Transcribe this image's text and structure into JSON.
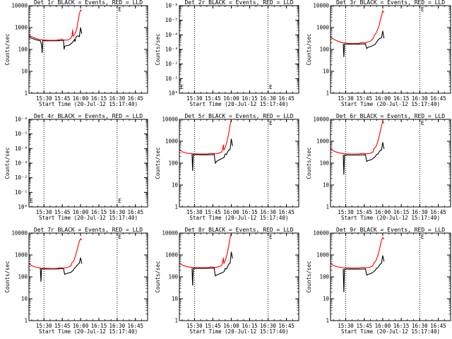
{
  "colors": {
    "events": "#000000",
    "lld": "#ff0000",
    "background": "#ffffff",
    "axes": "#000000"
  },
  "chart_data": [
    {
      "type": "line",
      "title": "Det 1r BLACK = Events, RED = LLD",
      "xlabel": "Start Time (20-Jul-12 15:17:40)",
      "ylabel": "Counts/sec",
      "yscale": "log",
      "xlim": [
        "15:17:40",
        "16:55"
      ],
      "ylim": [
        1,
        10000
      ],
      "xtick_labels": [
        "15:30",
        "15:45",
        "16:00",
        "16:15",
        "16:30",
        "16:45"
      ],
      "ytick_labels": [
        "1",
        "10",
        "100",
        "1000",
        "10000"
      ],
      "vlines": [
        "15:30",
        "16:30"
      ],
      "marker_label": "E",
      "series": [
        {
          "name": "Events",
          "color": "#000000",
          "x": [
            "15:17:40",
            "15:20",
            "15:24",
            "15:27",
            "15:28",
            "15:28.5",
            "15:29",
            "15:30",
            "15:31",
            "15:32",
            "15:34",
            "15:36",
            "15:40",
            "15:42",
            "15:44",
            "15:45",
            "15:46",
            "15:46.5",
            "15:47",
            "15:48",
            "15:48.5",
            "15:49",
            "15:49.5",
            "15:50",
            "15:51",
            "15:52",
            "15:53",
            "15:54",
            "15:55",
            "15:55.5",
            "15:56",
            "15:57",
            "15:58",
            "15:59",
            "16:00",
            "16:01"
          ],
          "y": [
            380,
            320,
            270,
            250,
            170,
            70,
            260,
            255,
            250,
            250,
            250,
            250,
            250,
            250,
            255,
            260,
            255,
            100,
            140,
            145,
            148,
            150,
            152,
            155,
            160,
            180,
            200,
            230,
            280,
            230,
            350,
            400,
            420,
            380,
            1000,
            520
          ]
        },
        {
          "name": "LLD",
          "color": "#ff0000",
          "x": [
            "15:17:40",
            "15:20",
            "15:24",
            "15:27",
            "15:30",
            "15:33",
            "15:36",
            "15:38",
            "15:40",
            "15:42",
            "15:44",
            "15:46",
            "15:48",
            "15:50",
            "15:51",
            "15:52",
            "15:53",
            "15:53.5",
            "15:54",
            "15:55",
            "15:56",
            "15:57",
            "15:58",
            "15:58.5",
            "15:59",
            "16:00",
            "16:01"
          ],
          "y": [
            480,
            380,
            310,
            280,
            270,
            265,
            262,
            262,
            265,
            270,
            300,
            270,
            265,
            275,
            290,
            330,
            420,
            800,
            400,
            460,
            620,
            950,
            2000,
            2800,
            4200,
            6300,
            5800
          ]
        }
      ]
    },
    {
      "type": "line",
      "title": "Det 2r BLACK = Events, RED = LLD",
      "xlabel": "Start Time (20-Jul-12 15:17:40)",
      "ylabel": "Counts/sec",
      "yscale": "log",
      "xlim": [
        "15:17:40",
        "16:55"
      ],
      "ylim": [
        1,
        1e-06
      ],
      "xtick_labels": [
        "15:30",
        "15:45",
        "16:00",
        "16:15",
        "16:30",
        "16:45"
      ],
      "ytick_labels": [
        "10⁰",
        "10⁻¹",
        "10⁻²",
        "10⁻³",
        "10⁻⁴",
        "10⁻⁵",
        "10⁻⁶"
      ],
      "vlines": [
        "15:30",
        "16:30"
      ],
      "marker_label": "E",
      "left_marker_label": "E",
      "series": []
    },
    {
      "type": "line",
      "title": "Det 3r BLACK = Events, RED = LLD",
      "xlabel": "Start Time (20-Jul-12 15:17:40)",
      "ylabel": "Counts/sec",
      "yscale": "log",
      "xlim": [
        "15:17:40",
        "16:55"
      ],
      "ylim": [
        1,
        10000
      ],
      "xtick_labels": [
        "15:30",
        "15:45",
        "16:00",
        "16:15",
        "16:30",
        "16:45"
      ],
      "ytick_labels": [
        "1",
        "10",
        "100",
        "1000",
        "10000"
      ],
      "vlines": [
        "15:30",
        "16:30"
      ],
      "marker_label": "E",
      "series": [
        {
          "name": "Events",
          "color": "#000000",
          "x": [
            "15:28",
            "15:28.5",
            "15:29",
            "15:32",
            "15:36",
            "15:40",
            "15:44",
            "15:46",
            "15:47",
            "15:48",
            "15:50",
            "15:52",
            "15:54",
            "15:55",
            "15:56",
            "15:57",
            "15:58",
            "15:59",
            "16:00",
            "16:01"
          ],
          "y": [
            180,
            45,
            175,
            175,
            175,
            175,
            178,
            180,
            110,
            125,
            135,
            150,
            175,
            220,
            260,
            300,
            330,
            340,
            700,
            320
          ]
        },
        {
          "name": "LLD",
          "color": "#ff0000",
          "x": [
            "15:17:40",
            "15:20",
            "15:24",
            "15:28",
            "15:32",
            "15:36",
            "15:40",
            "15:44",
            "15:46",
            "15:48",
            "15:50",
            "15:52",
            "15:53",
            "15:54",
            "15:55",
            "15:56",
            "15:57",
            "15:58",
            "15:59",
            "16:00",
            "16:01"
          ],
          "y": [
            380,
            300,
            230,
            200,
            190,
            185,
            190,
            210,
            200,
            220,
            240,
            300,
            420,
            500,
            620,
            850,
            1200,
            2000,
            3500,
            5800,
            4800
          ]
        }
      ]
    },
    {
      "type": "line",
      "title": "Det 4r BLACK = Events, RED = LLD",
      "xlabel": "Start Time (20-Jul-12 15:17:40)",
      "ylabel": "Counts/sec",
      "yscale": "log",
      "xlim": [
        "15:17:40",
        "16:55"
      ],
      "ylim": [
        1,
        1e-06
      ],
      "xtick_labels": [
        "15:30",
        "15:45",
        "16:00",
        "16:15",
        "16:30",
        "16:45"
      ],
      "ytick_labels": [
        "10⁰",
        "10⁻¹",
        "10⁻²",
        "10⁻³",
        "10⁻⁴",
        "10⁻⁵",
        "10⁻⁶"
      ],
      "vlines": [
        "15:30",
        "16:30"
      ],
      "marker_label": "E",
      "left_marker_label": "E",
      "series": []
    },
    {
      "type": "line",
      "title": "Det 5r BLACK = Events, RED = LLD",
      "xlabel": "Start Time (20-Jul-12 15:17:40)",
      "ylabel": "Counts/sec",
      "yscale": "log",
      "xlim": [
        "15:17:40",
        "16:55"
      ],
      "ylim": [
        1,
        10000
      ],
      "xtick_labels": [
        "15:30",
        "15:45",
        "16:00",
        "16:15",
        "16:30",
        "16:45"
      ],
      "ytick_labels": [
        "1",
        "10",
        "100",
        "1000",
        "10000"
      ],
      "vlines": [
        "15:30",
        "16:30"
      ],
      "marker_label": "E",
      "series": [
        {
          "name": "Events",
          "color": "#000000",
          "x": [
            "15:28",
            "15:28.5",
            "15:29",
            "15:32",
            "15:36",
            "15:40",
            "15:44",
            "15:46",
            "15:47",
            "15:48",
            "15:50",
            "15:52",
            "15:54",
            "15:55",
            "15:56",
            "15:57",
            "15:58",
            "15:59",
            "16:00",
            "16:01"
          ],
          "y": [
            260,
            45,
            250,
            245,
            240,
            240,
            245,
            250,
            100,
            120,
            140,
            160,
            180,
            260,
            250,
            320,
            400,
            420,
            1300,
            600
          ]
        },
        {
          "name": "LLD",
          "color": "#ff0000",
          "x": [
            "15:17:40",
            "15:20",
            "15:24",
            "15:28",
            "15:32",
            "15:36",
            "15:40",
            "15:44",
            "15:46",
            "15:48",
            "15:50",
            "15:52",
            "15:53",
            "15:53.5",
            "15:54",
            "15:55",
            "15:56",
            "15:57",
            "15:58",
            "15:59",
            "16:00"
          ],
          "y": [
            420,
            330,
            280,
            270,
            265,
            262,
            262,
            280,
            265,
            270,
            290,
            320,
            420,
            700,
            400,
            500,
            800,
            1300,
            2500,
            5500,
            9500
          ]
        }
      ]
    },
    {
      "type": "line",
      "title": "Det 6r BLACK = Events, RED = LLD",
      "xlabel": "Start Time (20-Jul-12 15:17:40)",
      "ylabel": "Counts/sec",
      "yscale": "log",
      "xlim": [
        "15:17:40",
        "16:55"
      ],
      "ylim": [
        1,
        10000
      ],
      "xtick_labels": [
        "15:30",
        "15:45",
        "16:00",
        "16:15",
        "16:30",
        "16:45"
      ],
      "ytick_labels": [
        "1",
        "10",
        "100",
        "1000",
        "10000"
      ],
      "vlines": [
        "15:30",
        "16:30"
      ],
      "marker_label": "E",
      "series": [
        {
          "name": "Events",
          "color": "#000000",
          "x": [
            "15:28",
            "15:28.5",
            "15:29",
            "15:32",
            "15:36",
            "15:40",
            "15:44",
            "15:46",
            "15:47",
            "15:48",
            "15:50",
            "15:52",
            "15:54",
            "15:55",
            "15:56",
            "15:57",
            "15:58",
            "15:59",
            "16:00",
            "16:01"
          ],
          "y": [
            240,
            30,
            235,
            235,
            235,
            235,
            238,
            240,
            120,
            130,
            140,
            160,
            200,
            250,
            260,
            320,
            380,
            400,
            900,
            450
          ]
        },
        {
          "name": "LLD",
          "color": "#ff0000",
          "x": [
            "15:17:40",
            "15:20",
            "15:24",
            "15:28",
            "15:32",
            "15:36",
            "15:40",
            "15:44",
            "15:46",
            "15:48",
            "15:50",
            "15:52",
            "15:53",
            "15:54",
            "15:55",
            "15:56",
            "15:57",
            "15:58",
            "15:59",
            "16:00",
            "16:01"
          ],
          "y": [
            480,
            360,
            300,
            270,
            265,
            262,
            262,
            280,
            265,
            270,
            285,
            320,
            480,
            520,
            650,
            1000,
            1600,
            2800,
            5200,
            8000,
            6500
          ]
        }
      ]
    },
    {
      "type": "line",
      "title": "Det 7r BLACK = Events, RED = LLD",
      "xlabel": "Start Time (20-Jul-12 15:17:40)",
      "ylabel": "Counts/sec",
      "yscale": "log",
      "xlim": [
        "15:17:40",
        "16:55"
      ],
      "ylim": [
        1,
        10000
      ],
      "xtick_labels": [
        "15:30",
        "15:45",
        "16:00",
        "16:15",
        "16:30",
        "16:45"
      ],
      "ytick_labels": [
        "1",
        "10",
        "100",
        "1000",
        "10000"
      ],
      "vlines": [
        "15:30",
        "16:30"
      ],
      "marker_label": "E",
      "series": [
        {
          "name": "Events",
          "color": "#000000",
          "x": [
            "15:27",
            "15:27.5",
            "15:28",
            "15:32",
            "15:36",
            "15:40",
            "15:44",
            "15:46",
            "15:47",
            "15:48",
            "15:50",
            "15:52",
            "15:54",
            "15:55",
            "15:56",
            "15:57",
            "15:58",
            "15:59",
            "16:00",
            "16:01"
          ],
          "y": [
            240,
            60,
            230,
            230,
            230,
            230,
            235,
            240,
            130,
            140,
            150,
            160,
            200,
            250,
            280,
            330,
            380,
            420,
            750,
            400
          ]
        },
        {
          "name": "LLD",
          "color": "#ff0000",
          "x": [
            "15:17:40",
            "15:20",
            "15:24",
            "15:28",
            "15:32",
            "15:36",
            "15:40",
            "15:44",
            "15:46",
            "15:48",
            "15:50",
            "15:52",
            "15:53",
            "15:54",
            "15:55",
            "15:56",
            "15:57",
            "15:58",
            "15:59",
            "16:00",
            "16:01"
          ],
          "y": [
            420,
            320,
            270,
            250,
            245,
            240,
            242,
            260,
            250,
            260,
            280,
            320,
            450,
            480,
            650,
            1000,
            1500,
            2600,
            4200,
            5500,
            4800
          ]
        }
      ]
    },
    {
      "type": "line",
      "title": "Det 8r BLACK = Events, RED = LLD",
      "xlabel": "Start Time (20-Jul-12 15:17:40)",
      "ylabel": "Counts/sec",
      "yscale": "log",
      "xlim": [
        "15:17:40",
        "16:55"
      ],
      "ylim": [
        1,
        10000
      ],
      "xtick_labels": [
        "15:30",
        "15:45",
        "16:00",
        "16:15",
        "16:30",
        "16:45"
      ],
      "ytick_labels": [
        "1",
        "10",
        "100",
        "1000",
        "10000"
      ],
      "vlines": [
        "15:30",
        "16:30"
      ],
      "marker_label": "E",
      "series": [
        {
          "name": "Events",
          "color": "#000000",
          "x": [
            "15:28",
            "15:28.5",
            "15:29",
            "15:32",
            "15:36",
            "15:40",
            "15:44",
            "15:46",
            "15:47",
            "15:48",
            "15:50",
            "15:52",
            "15:54",
            "15:55",
            "15:56",
            "15:57",
            "15:58",
            "15:59",
            "16:00",
            "16:01"
          ],
          "y": [
            250,
            40,
            245,
            245,
            245,
            245,
            250,
            255,
            110,
            120,
            135,
            150,
            170,
            240,
            230,
            300,
            380,
            420,
            1400,
            700
          ]
        },
        {
          "name": "LLD",
          "color": "#ff0000",
          "x": [
            "15:17:40",
            "15:20",
            "15:24",
            "15:28",
            "15:32",
            "15:36",
            "15:40",
            "15:44",
            "15:46",
            "15:48",
            "15:50",
            "15:52",
            "15:53",
            "15:53.5",
            "15:54",
            "15:55",
            "15:56",
            "15:57",
            "15:58",
            "15:59",
            "16:00"
          ],
          "y": [
            430,
            340,
            290,
            270,
            265,
            262,
            262,
            285,
            268,
            275,
            295,
            330,
            450,
            750,
            420,
            520,
            850,
            1400,
            2800,
            6000,
            9800
          ]
        }
      ]
    },
    {
      "type": "line",
      "title": "Det 9r BLACK = Events, RED = LLD",
      "xlabel": "Start Time (20-Jul-12 15:17:40)",
      "ylabel": "Counts/sec",
      "yscale": "log",
      "xlim": [
        "15:17:40",
        "16:55"
      ],
      "ylim": [
        1,
        10000
      ],
      "xtick_labels": [
        "15:30",
        "15:45",
        "16:00",
        "16:15",
        "16:30",
        "16:45"
      ],
      "ytick_labels": [
        "1",
        "10",
        "100",
        "1000",
        "10000"
      ],
      "vlines": [
        "15:30",
        "16:30"
      ],
      "marker_label": "E",
      "series": [
        {
          "name": "Events",
          "color": "#000000",
          "x": [
            "15:28",
            "15:28.5",
            "15:29",
            "15:32",
            "15:36",
            "15:40",
            "15:44",
            "15:46",
            "15:47",
            "15:48",
            "15:50",
            "15:52",
            "15:54",
            "15:55",
            "15:56",
            "15:57",
            "15:58",
            "15:59",
            "16:00",
            "16:01"
          ],
          "y": [
            230,
            20,
            225,
            225,
            225,
            225,
            228,
            230,
            120,
            130,
            140,
            160,
            200,
            250,
            260,
            320,
            380,
            420,
            950,
            500
          ]
        },
        {
          "name": "LLD",
          "color": "#ff0000",
          "x": [
            "15:17:40",
            "15:20",
            "15:24",
            "15:28",
            "15:32",
            "15:36",
            "15:40",
            "15:44",
            "15:46",
            "15:48",
            "15:50",
            "15:52",
            "15:53",
            "15:54",
            "15:55",
            "15:56",
            "15:57",
            "15:58",
            "15:59",
            "16:00",
            "16:01"
          ],
          "y": [
            430,
            330,
            280,
            260,
            255,
            252,
            252,
            270,
            258,
            265,
            280,
            320,
            460,
            500,
            640,
            980,
            1500,
            2600,
            4600,
            6200,
            5200
          ]
        }
      ]
    }
  ]
}
